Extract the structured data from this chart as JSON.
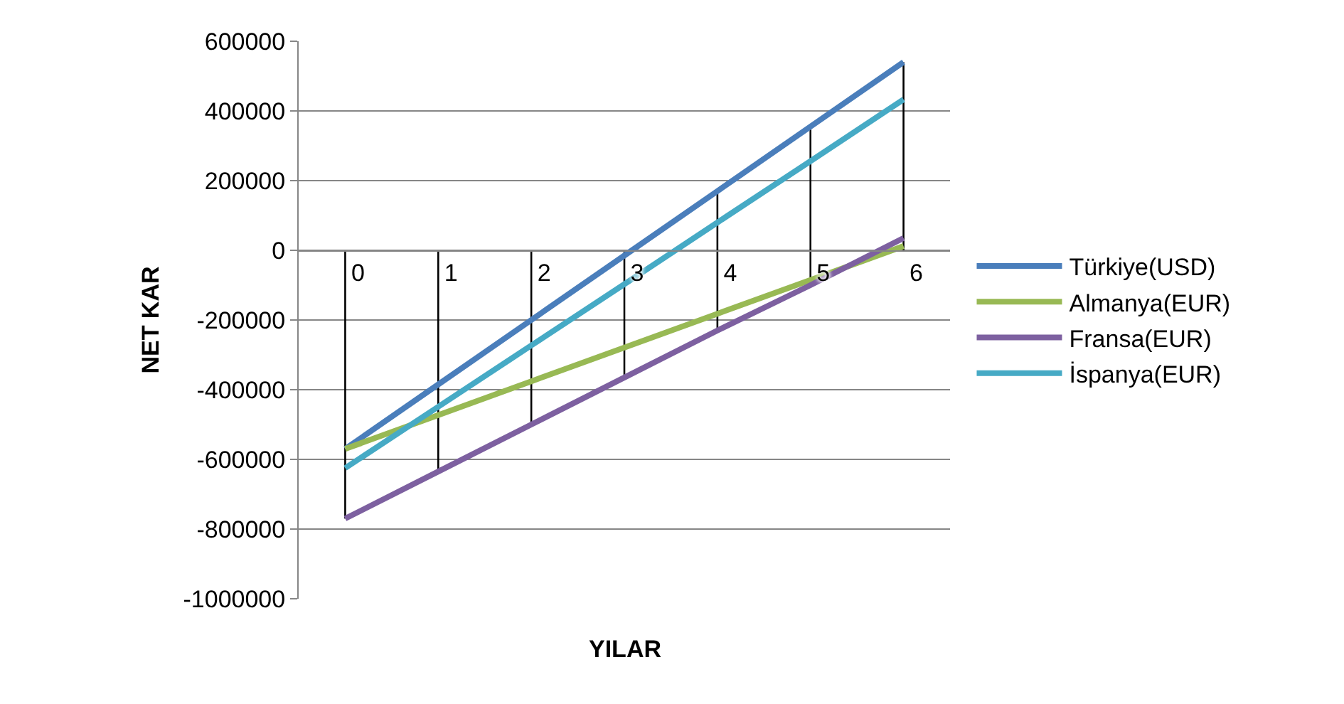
{
  "chart_data": {
    "type": "line",
    "xlabel": "YILAR",
    "ylabel": "NET KAR",
    "categories": [
      "0",
      "1",
      "2",
      "3",
      "4",
      "5",
      "6"
    ],
    "series": [
      {
        "name": "Türkiye(USD)",
        "color": "#4a7ebb",
        "values": [
          -570000,
          -385000,
          -200000,
          -15000,
          170000,
          355000,
          540000
        ],
        "errors": [
          [
            -770000,
            0
          ],
          [
            -635000,
            0
          ],
          [
            -500000,
            0
          ],
          [
            -365000,
            0
          ],
          [
            -230000,
            170000
          ],
          [
            -100000,
            355000
          ],
          [
            0,
            540000
          ]
        ]
      },
      {
        "name": "Almanya(EUR)",
        "color": "#98b954",
        "values": [
          -570000,
          -473000,
          -376000,
          -279000,
          -182000,
          -85000,
          12000
        ]
      },
      {
        "name": "Fransa(EUR)",
        "color": "#7d60a0",
        "values": [
          -770000,
          -635000,
          -500000,
          -365000,
          -230000,
          -100000,
          35000
        ]
      },
      {
        "name": "İspanya(EUR)",
        "color": "#46aac5",
        "values": [
          -625000,
          -449000,
          -273000,
          -97000,
          80000,
          256000,
          433000
        ]
      }
    ],
    "ylim": [
      -1000000,
      600000
    ],
    "yticks": [
      -1000000,
      -800000,
      -600000,
      -400000,
      -200000,
      0,
      200000,
      400000,
      600000
    ],
    "grid": "y",
    "legend": "right",
    "marker": "none",
    "line_style": "solid"
  }
}
